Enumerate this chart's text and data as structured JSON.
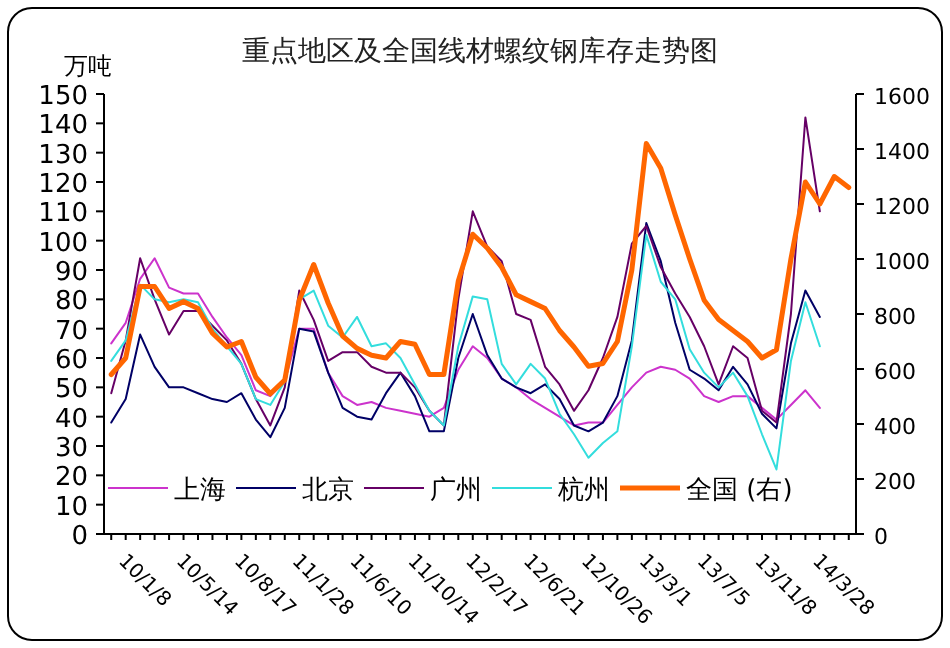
{
  "chart_data": {
    "type": "line",
    "title": "重点地区及全国线材螺纹钢库存走势图",
    "ylabel": "万吨",
    "categories": [
      null,
      "10/1/8",
      null,
      null,
      null,
      "10/5/14",
      null,
      null,
      null,
      "10/8/17",
      null,
      null,
      null,
      "11/1/28",
      null,
      null,
      null,
      "11/6/10",
      null,
      null,
      null,
      "11/10/14",
      null,
      null,
      null,
      "12/2/17",
      null,
      null,
      null,
      "12/6/21",
      null,
      null,
      null,
      "12/10/26",
      null,
      null,
      null,
      "13/3/1",
      null,
      null,
      null,
      "13/7/5",
      null,
      null,
      null,
      "13/11/8",
      null,
      null,
      null,
      "14/3/28",
      null,
      null
    ],
    "ylim": [
      0,
      150
    ],
    "yticks": [
      0,
      10,
      20,
      30,
      40,
      50,
      60,
      70,
      80,
      90,
      100,
      110,
      120,
      130,
      140,
      150
    ],
    "y2lim": [
      0,
      1600
    ],
    "y2ticks": [
      0,
      200,
      400,
      600,
      800,
      1000,
      1200,
      1400,
      1600
    ],
    "legend": "bottom",
    "grid": false,
    "marker": "none",
    "line_style": "solid",
    "series": [
      {
        "name": "上海",
        "color": "#cc33cc",
        "values": [
          65,
          72,
          87,
          94,
          84,
          82,
          82,
          74,
          67,
          61,
          49,
          47,
          52,
          70,
          70,
          55,
          47,
          44,
          45,
          43,
          42,
          41,
          40,
          43,
          56,
          64,
          60,
          53,
          50,
          46,
          43,
          40,
          37,
          38,
          38,
          44,
          50,
          55,
          57,
          56,
          53,
          47,
          45,
          47,
          47,
          43,
          39,
          44,
          49,
          43,
          null,
          null
        ]
      },
      {
        "name": "北京",
        "color": "#000066",
        "values": [
          38,
          46,
          68,
          57,
          50,
          50,
          48,
          46,
          45,
          48,
          39,
          33,
          43,
          70,
          69,
          55,
          43,
          40,
          39,
          48,
          55,
          47,
          35,
          35,
          60,
          75,
          61,
          53,
          50,
          48,
          51,
          46,
          37,
          35,
          38,
          47,
          66,
          106,
          93,
          72,
          56,
          53,
          49,
          57,
          51,
          41,
          36,
          65,
          83,
          74,
          null,
          null
        ]
      },
      {
        "name": "广州",
        "color": "#660066",
        "values": [
          48,
          66,
          94,
          80,
          68,
          76,
          76,
          71,
          66,
          58,
          46,
          37,
          50,
          83,
          73,
          59,
          62,
          62,
          57,
          55,
          55,
          50,
          42,
          37,
          80,
          110,
          98,
          93,
          75,
          73,
          57,
          51,
          42,
          49,
          60,
          74,
          99,
          105,
          91,
          82,
          74,
          64,
          51,
          64,
          60,
          42,
          38,
          75,
          142,
          110,
          null,
          null
        ]
      },
      {
        "name": "杭州",
        "color": "#33dddd",
        "values": [
          59,
          66,
          85,
          80,
          79,
          80,
          79,
          70,
          64,
          58,
          46,
          44,
          52,
          80,
          83,
          71,
          67,
          74,
          64,
          65,
          60,
          51,
          42,
          37,
          64,
          81,
          80,
          58,
          51,
          58,
          53,
          41,
          34,
          26,
          31,
          35,
          64,
          102,
          86,
          80,
          63,
          55,
          50,
          55,
          47,
          34,
          22,
          59,
          79,
          64,
          null,
          null
        ]
      },
      {
        "name": "全国 (右)",
        "color": "#ff6600",
        "axis": "y2",
        "values": [
          580,
          640,
          900,
          900,
          820,
          845,
          820,
          730,
          680,
          700,
          570,
          510,
          560,
          850,
          980,
          840,
          720,
          675,
          650,
          640,
          700,
          690,
          580,
          580,
          920,
          1090,
          1040,
          970,
          870,
          845,
          820,
          740,
          680,
          610,
          620,
          700,
          960,
          1420,
          1330,
          1160,
          1000,
          850,
          780,
          740,
          700,
          640,
          670,
          1000,
          1280,
          1200,
          1300,
          1260
        ]
      }
    ]
  }
}
